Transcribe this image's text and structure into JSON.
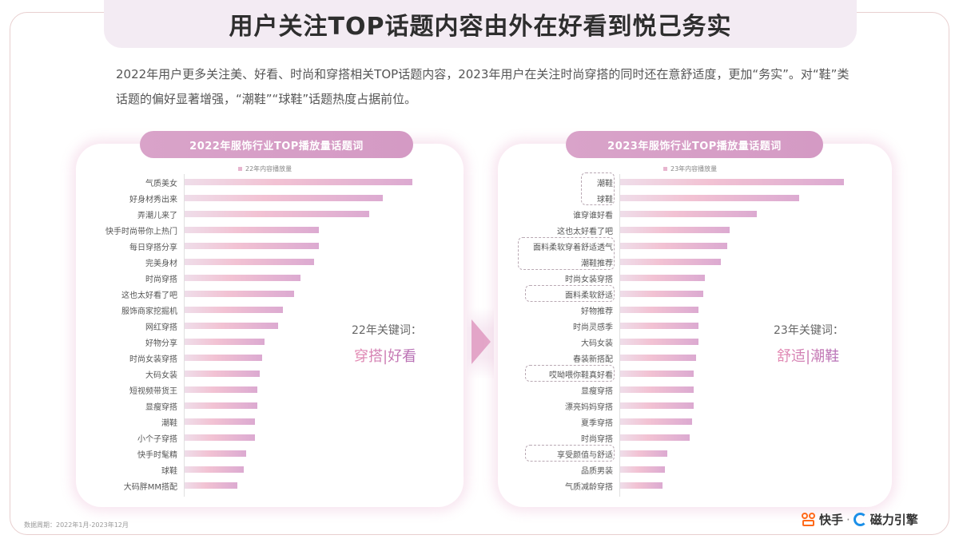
{
  "title": "用户关注TOP话题内容由外在好看到悦己务实",
  "summary": "2022年用户更多关注美、好看、时尚和穿搭相关TOP话题内容，2023年用户在关注时尚穿搭的同时还在意舒适度，更加“务实”。对“鞋”类话题的偏好显著增强，“潮鞋”“球鞋”话题热度占据前位。",
  "panels": {
    "left": {
      "header": "2022年服饰行业TOP播放量话题词",
      "legend": "22年内容播放量",
      "keyword_caption": "22年关键词：",
      "keyword_value": "穿搭|好看"
    },
    "right": {
      "header": "2023年服饰行业TOP播放量话题词",
      "legend": "23年内容播放量",
      "keyword_caption": "23年关键词：",
      "keyword_value": "舒适|潮鞋"
    }
  },
  "source": "数据周期：2022年1月-2023年12月",
  "logos": {
    "kuaishou": "快手",
    "separator": "·",
    "cili": "磁力引擎"
  },
  "colors": {
    "bar_start": "#efdde9",
    "bar_mid": "#f2c2d3",
    "bar_end": "#dcaad1",
    "header_bg": "#d9a3c9",
    "keyword_gradient_start": "#e58ab2",
    "keyword_gradient_end": "#b46eb5",
    "title_banner_bg": "#f3ebf3"
  },
  "chart_data": [
    {
      "type": "bar",
      "orientation": "horizontal",
      "title": "2022年服饰行业TOP播放量话题词",
      "legend": [
        "22年内容播放量"
      ],
      "xlabel": "",
      "ylabel": "",
      "grid": false,
      "units": "relative (axis unlabeled; values normalized to top = 100)",
      "categories": [
        "气质美女",
        "好身材秀出来",
        "弄潮儿来了",
        "快手时尚带你上热门",
        "每日穿搭分享",
        "完美身材",
        "时尚穿搭",
        "这也太好看了吧",
        "服饰商家挖掘机",
        "网红穿搭",
        "好物分享",
        "时尚女装穿搭",
        "大码女装",
        "短视频带货王",
        "显瘦穿搭",
        "潮鞋",
        "小个子穿搭",
        "快手时髦精",
        "球鞋",
        "大码胖MM搭配"
      ],
      "values": [
        100,
        87,
        81,
        59,
        59,
        57,
        51,
        48,
        43,
        41,
        35,
        34,
        33,
        32,
        32,
        31,
        31,
        27,
        26,
        23
      ]
    },
    {
      "type": "bar",
      "orientation": "horizontal",
      "title": "2023年服饰行业TOP播放量话题词",
      "legend": [
        "23年内容播放量"
      ],
      "xlabel": "",
      "ylabel": "",
      "grid": false,
      "units": "relative (axis unlabeled; values normalized to top = 100)",
      "categories": [
        "潮鞋",
        "球鞋",
        "谁穿谁好看",
        "这也太好看了吧",
        "面料柔软穿着舒适透气",
        "潮鞋推荐",
        "时尚女装穿搭",
        "面料柔软舒适",
        "好物推荐",
        "时尚灵感季",
        "大码女装",
        "春装新搭配",
        "哎呦喂你鞋真好看",
        "显瘦穿搭",
        "漂亮妈妈穿搭",
        "夏季穿搭",
        "时尚穿搭",
        "享受颜值与舒适",
        "品质男装",
        "气质减龄穿搭"
      ],
      "values": [
        100,
        80,
        61,
        49,
        48,
        45,
        38,
        37,
        35,
        35,
        35,
        34,
        33,
        33,
        33,
        32,
        31,
        21,
        20,
        19
      ],
      "highlighted_groups": [
        [
          "潮鞋",
          "球鞋"
        ],
        [
          "面料柔软穿着舒适透气",
          "潮鞋推荐"
        ],
        [
          "面料柔软舒适"
        ],
        [
          "哎呦喂你鞋真好看"
        ],
        [
          "享受颜值与舒适"
        ]
      ]
    }
  ]
}
